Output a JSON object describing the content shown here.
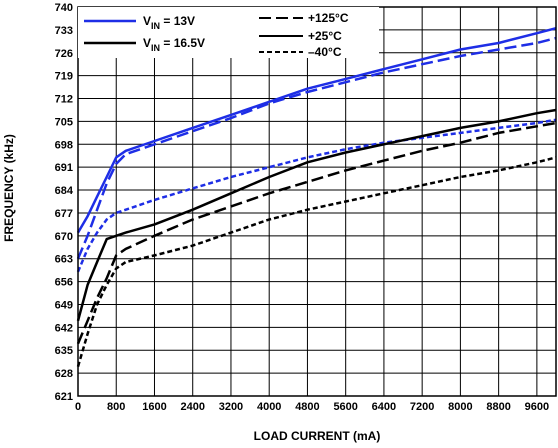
{
  "chart_data": {
    "type": "line",
    "title": "",
    "xlabel": "LOAD CURRENT (mA)",
    "ylabel": "FREQUENCY (kHz)",
    "xlim": [
      0,
      10000
    ],
    "ylim": [
      621,
      740
    ],
    "xticks": [
      0,
      800,
      1600,
      2400,
      3200,
      4000,
      4800,
      5600,
      6400,
      7200,
      8000,
      8800,
      9600
    ],
    "yticks": [
      621,
      628,
      635,
      642,
      649,
      656,
      663,
      670,
      677,
      684,
      691,
      698,
      705,
      712,
      719,
      726,
      733,
      740
    ],
    "grid": true,
    "legend_placement": "top-left",
    "legend": {
      "vin": [
        {
          "main": "V",
          "sub": "IN",
          "rest": " = 13V",
          "color": "#1e2ee6"
        },
        {
          "main": "V",
          "sub": "IN",
          "rest": " = 16.5V",
          "color": "#000000"
        }
      ],
      "temp": [
        {
          "label": "+125°C",
          "style": "dashed"
        },
        {
          "label": "+25°C",
          "style": "solid"
        },
        {
          "label": "–40°C",
          "style": "dotted"
        }
      ]
    },
    "series": [
      {
        "vin": "13V",
        "temp": "+25°C",
        "color": "#1e2ee6",
        "style": "solid",
        "x": [
          0,
          200,
          400,
          600,
          800,
          1000,
          1600,
          2400,
          3200,
          4000,
          4800,
          5600,
          6400,
          7200,
          8000,
          8800,
          9600,
          10000
        ],
        "y": [
          671,
          676,
          682,
          688,
          694,
          696,
          699,
          703,
          707,
          711,
          715,
          718,
          721,
          724,
          727,
          729,
          732,
          733.5
        ]
      },
      {
        "vin": "13V",
        "temp": "+125°C",
        "color": "#1e2ee6",
        "style": "dashed",
        "x": [
          0,
          200,
          400,
          600,
          800,
          1000,
          1600,
          2400,
          3200,
          4000,
          4800,
          5600,
          6400,
          7200,
          8000,
          8800,
          9600,
          10000
        ],
        "y": [
          663,
          670,
          678,
          686,
          692,
          695,
          698,
          702,
          706,
          710.5,
          714,
          717,
          720,
          722.5,
          725,
          727,
          729,
          730.5
        ]
      },
      {
        "vin": "13V",
        "temp": "–40°C",
        "color": "#1e2ee6",
        "style": "dotted",
        "x": [
          0,
          200,
          400,
          600,
          800,
          1000,
          1600,
          2400,
          3200,
          4000,
          4800,
          5600,
          6400,
          7200,
          8000,
          8800,
          9600,
          10000
        ],
        "y": [
          659,
          666,
          671,
          675,
          677,
          678,
          681,
          684.5,
          688,
          691,
          694,
          696.5,
          698.5,
          700,
          701.5,
          703,
          704.5,
          705.5
        ]
      },
      {
        "vin": "16.5V",
        "temp": "+25°C",
        "color": "#000000",
        "style": "solid",
        "x": [
          0,
          200,
          400,
          600,
          800,
          1000,
          1600,
          2400,
          3200,
          4000,
          4800,
          5600,
          6400,
          7200,
          8000,
          8800,
          9600,
          10000
        ],
        "y": [
          644,
          655,
          662,
          669,
          670,
          671,
          673.5,
          678,
          683,
          688,
          692.5,
          695.5,
          698,
          700.5,
          703,
          705,
          707.5,
          708.5
        ]
      },
      {
        "vin": "16.5V",
        "temp": "+125°C",
        "color": "#000000",
        "style": "dashed",
        "x": [
          0,
          200,
          400,
          600,
          800,
          1000,
          1600,
          2400,
          3200,
          4000,
          4800,
          5600,
          6400,
          7200,
          8000,
          8800,
          9600,
          10000
        ],
        "y": [
          637,
          644,
          651,
          657,
          664,
          666,
          670,
          675,
          679,
          683,
          686.5,
          690,
          693,
          696,
          698.5,
          701.5,
          703.5,
          704.5
        ]
      },
      {
        "vin": "16.5V",
        "temp": "–40°C",
        "color": "#000000",
        "style": "dotted",
        "x": [
          0,
          200,
          400,
          600,
          800,
          1000,
          1600,
          2400,
          3200,
          4000,
          4800,
          5600,
          6400,
          7200,
          8000,
          8800,
          9600,
          10000
        ],
        "y": [
          630,
          640,
          649,
          655,
          660,
          662,
          664,
          667,
          671,
          675,
          678,
          680.5,
          683,
          685.5,
          688,
          690,
          692.5,
          694
        ]
      }
    ]
  }
}
